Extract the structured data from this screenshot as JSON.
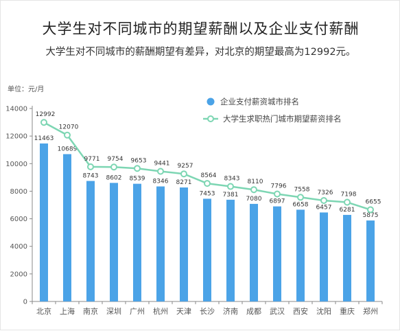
{
  "page": {
    "title": "大学生对不同城市的期望薪酬以及企业支付薪酬",
    "subtitle": "大学生对不同城市的薪酬期望有差异，对北京的期望最高为12992元。"
  },
  "colors": {
    "bar": "#4ba3e7",
    "line": "#7dd6b3",
    "marker_fill": "#ffffff",
    "axis": "#888888"
  },
  "chart_data": {
    "type": "bar",
    "unit_label": "单位：元/月",
    "categories": [
      "北京",
      "上海",
      "南京",
      "深圳",
      "广州",
      "杭州",
      "天津",
      "长沙",
      "济南",
      "成都",
      "武汉",
      "西安",
      "沈阳",
      "重庆",
      "郑州"
    ],
    "series": [
      {
        "name": "企业支付薪资城市排名",
        "type": "bar",
        "values": [
          11463,
          10689,
          8743,
          8602,
          8539,
          8346,
          8271,
          7453,
          7381,
          7080,
          6897,
          6658,
          6457,
          6281,
          5875
        ]
      },
      {
        "name": "大学生求职热门城市期望薪资排名",
        "type": "line",
        "values": [
          12992,
          12070,
          9771,
          9754,
          9653,
          9441,
          9257,
          8564,
          8343,
          8110,
          7796,
          7558,
          7326,
          7198,
          6655
        ]
      }
    ],
    "ylim": [
      0,
      14000
    ],
    "yticks": [
      0,
      2000,
      4000,
      6000,
      8000,
      10000,
      12000,
      14000
    ],
    "grid": false,
    "legend": "top-right"
  }
}
